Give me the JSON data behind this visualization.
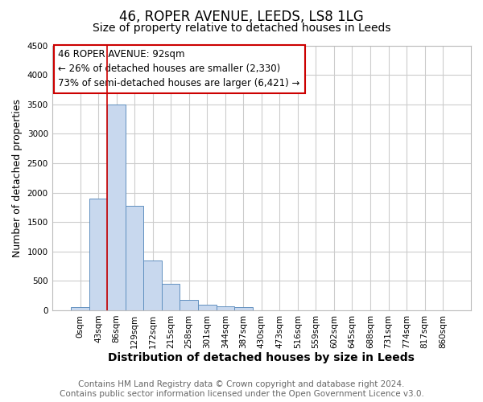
{
  "title1": "46, ROPER AVENUE, LEEDS, LS8 1LG",
  "title2": "Size of property relative to detached houses in Leeds",
  "xlabel": "Distribution of detached houses by size in Leeds",
  "ylabel": "Number of detached properties",
  "annotation_title": "46 ROPER AVENUE: 92sqm",
  "annotation_line1": "← 26% of detached houses are smaller (2,330)",
  "annotation_line2": "73% of semi-detached houses are larger (6,421) →",
  "bar_categories": [
    "0sqm",
    "43sqm",
    "86sqm",
    "129sqm",
    "172sqm",
    "215sqm",
    "258sqm",
    "301sqm",
    "344sqm",
    "387sqm",
    "430sqm",
    "473sqm",
    "516sqm",
    "559sqm",
    "602sqm",
    "645sqm",
    "688sqm",
    "731sqm",
    "774sqm",
    "817sqm",
    "860sqm"
  ],
  "bar_values": [
    50,
    1900,
    3500,
    1775,
    850,
    450,
    175,
    100,
    65,
    50,
    0,
    0,
    0,
    0,
    0,
    0,
    0,
    0,
    0,
    0,
    0
  ],
  "bar_color": "#c8d8ee",
  "bar_edge_color": "#6090c0",
  "vline_x_index": 2,
  "vline_color": "#cc0000",
  "ylim": [
    0,
    4500
  ],
  "yticks": [
    0,
    500,
    1000,
    1500,
    2000,
    2500,
    3000,
    3500,
    4000,
    4500
  ],
  "footer1": "Contains HM Land Registry data © Crown copyright and database right 2024.",
  "footer2": "Contains public sector information licensed under the Open Government Licence v3.0.",
  "bg_color": "#ffffff",
  "grid_color": "#cccccc",
  "annotation_box_color": "#cc0000",
  "title1_fontsize": 12,
  "title2_fontsize": 10,
  "tick_fontsize": 7.5,
  "ylabel_fontsize": 9,
  "xlabel_fontsize": 10,
  "annotation_fontsize": 8.5,
  "footer_fontsize": 7.5
}
